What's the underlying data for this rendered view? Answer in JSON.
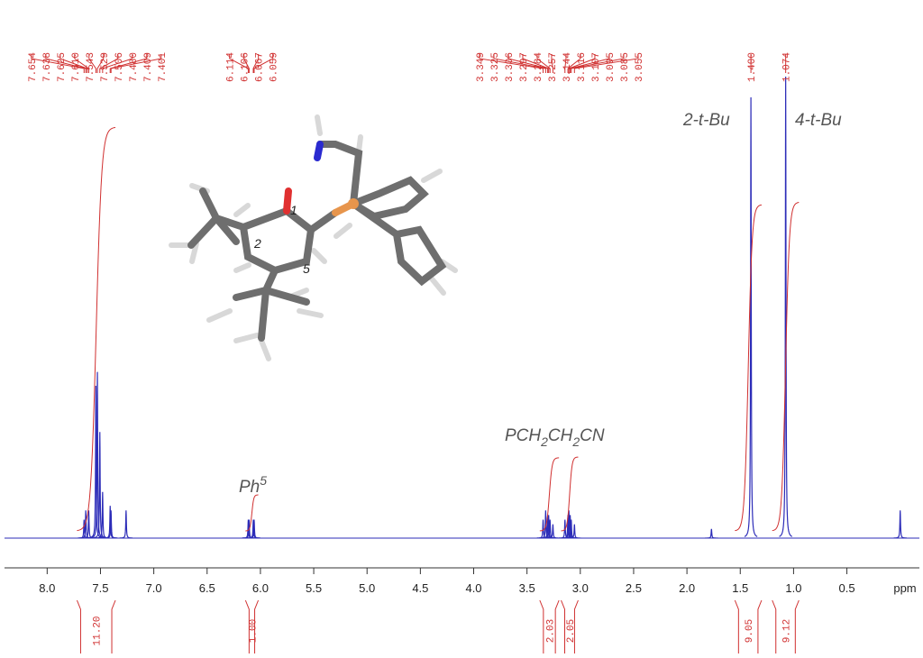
{
  "chart_data": {
    "type": "spectrum",
    "x_label": "ppm",
    "xlim": [
      8.4,
      -0.18
    ],
    "xticks": [
      {
        "value": 8,
        "label": "8.0"
      },
      7.5,
      {
        "value": 7,
        "label": "7.0"
      },
      6.5,
      {
        "value": 6,
        "label": "6.0"
      },
      5.5,
      {
        "value": 5,
        "label": "5.0"
      },
      4.5,
      {
        "value": 4,
        "label": "4.0"
      },
      3.5,
      {
        "value": 3,
        "label": "3.0"
      },
      2.5,
      {
        "value": 2,
        "label": "2.0"
      },
      1.5,
      {
        "value": 1,
        "label": "1.0"
      },
      0.5
    ],
    "ylim": [
      0,
      100
    ],
    "series": [
      {
        "color": "#2c2cb8",
        "x": [
          7.654,
          7.638,
          7.61,
          7.543,
          7.529,
          7.506,
          7.48,
          7.409,
          7.401,
          7.26,
          6.114,
          6.106,
          6.067,
          6.059,
          3.349,
          3.325,
          3.306,
          3.297,
          3.284,
          3.257,
          3.144,
          3.116,
          3.107,
          3.095,
          3.085,
          3.055,
          1.77,
          1.4,
          1.074,
          0
        ],
        "values": [
          4,
          6,
          6,
          33,
          36,
          23,
          10,
          7,
          6,
          6,
          4,
          4,
          4,
          4,
          4,
          6,
          5,
          5,
          4,
          3,
          4,
          5,
          6,
          5,
          4,
          3,
          2,
          95.5,
          100,
          6
        ]
      }
    ],
    "peak_labels": [
      {
        "value": 7.654,
        "label": "7.654"
      },
      {
        "value": 7.638,
        "label": "7.638"
      },
      {
        "value": 7.625,
        "label": "7.625"
      },
      {
        "value": 7.61,
        "label": "7.610"
      },
      {
        "value": 7.543,
        "label": "7.543"
      },
      {
        "value": 7.529,
        "label": "7.529"
      },
      {
        "value": 7.506,
        "label": "7.506"
      },
      {
        "value": 7.48,
        "label": "7.480"
      },
      {
        "value": 7.409,
        "label": "7.409"
      },
      {
        "value": 7.401,
        "label": "7.401"
      },
      {
        "value": 6.114,
        "label": "6.114"
      },
      {
        "value": 6.106,
        "label": "6.106"
      },
      {
        "value": 6.067,
        "label": "6.067"
      },
      {
        "value": 6.059,
        "label": "6.059"
      },
      {
        "value": 3.349,
        "label": "3.349"
      },
      {
        "value": 3.325,
        "label": "3.325"
      },
      {
        "value": 3.306,
        "label": "3.306"
      },
      {
        "value": 3.297,
        "label": "3.297"
      },
      {
        "value": 3.284,
        "label": "3.284"
      },
      {
        "value": 3.257,
        "label": "3.257"
      },
      {
        "value": 3.144,
        "label": "3.144"
      },
      {
        "value": 3.116,
        "label": "3.116"
      },
      {
        "value": 3.107,
        "label": "3.107"
      },
      {
        "value": 3.095,
        "label": "3.095"
      },
      {
        "value": 3.085,
        "label": "3.085"
      },
      {
        "value": 3.055,
        "label": "3.055"
      },
      {
        "value": 1.4,
        "label": "1.400"
      },
      {
        "value": 1.074,
        "label": "1.074"
      }
    ],
    "integrals": [
      {
        "from": 7.72,
        "to": 7.36,
        "value": {
          "value": 11.2,
          "label": "11.20"
        }
      },
      {
        "from": 6.14,
        "to": 6.02,
        "value": {
          "value": 1,
          "label": "1.00"
        }
      },
      {
        "from": 3.38,
        "to": 3.2,
        "value": 2.03
      },
      {
        "from": 3.18,
        "to": 3.02,
        "value": 2.05
      },
      {
        "from": 1.55,
        "to": 1.3,
        "value": 9.05
      },
      {
        "from": 1.2,
        "to": 0.95,
        "value": 9.12
      }
    ],
    "label_color": "#d03030",
    "annotations": [
      [
        "2-t-Bu"
      ],
      [
        "4-t-Bu"
      ],
      [
        "Ph",
        "5"
      ],
      [
        "PCH",
        "2",
        "CH",
        "2",
        "CN"
      ]
    ],
    "molecule_labels": [
      "1",
      "2",
      "5"
    ]
  }
}
